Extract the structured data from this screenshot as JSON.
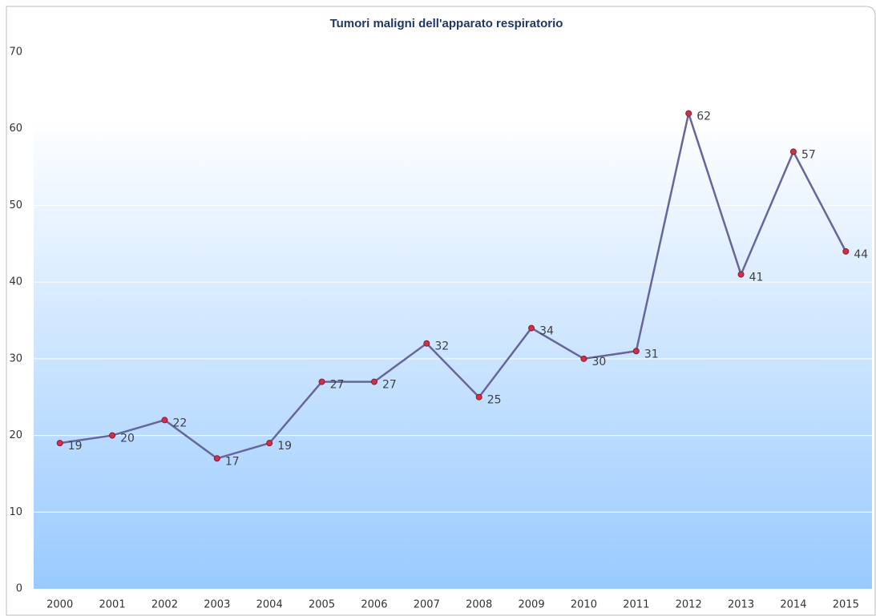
{
  "chart_data": {
    "type": "line",
    "title": "Tumori maligni dell'apparato respiratorio",
    "categories": [
      "2000",
      "2001",
      "2002",
      "2003",
      "2004",
      "2005",
      "2006",
      "2007",
      "2008",
      "2009",
      "2010",
      "2011",
      "2012",
      "2013",
      "2014",
      "2015"
    ],
    "series": [
      {
        "name": "Tumori maligni dell'apparato respiratorio",
        "color": "#66669a",
        "values": [
          19,
          20,
          22,
          17,
          19,
          27,
          27,
          32,
          25,
          34,
          30,
          31,
          62,
          41,
          57,
          44
        ]
      }
    ],
    "marker_color": "#d0304a",
    "ylim": [
      0,
      70
    ],
    "yticks": [
      0,
      10,
      20,
      30,
      40,
      50,
      60,
      70
    ],
    "grid": true
  }
}
